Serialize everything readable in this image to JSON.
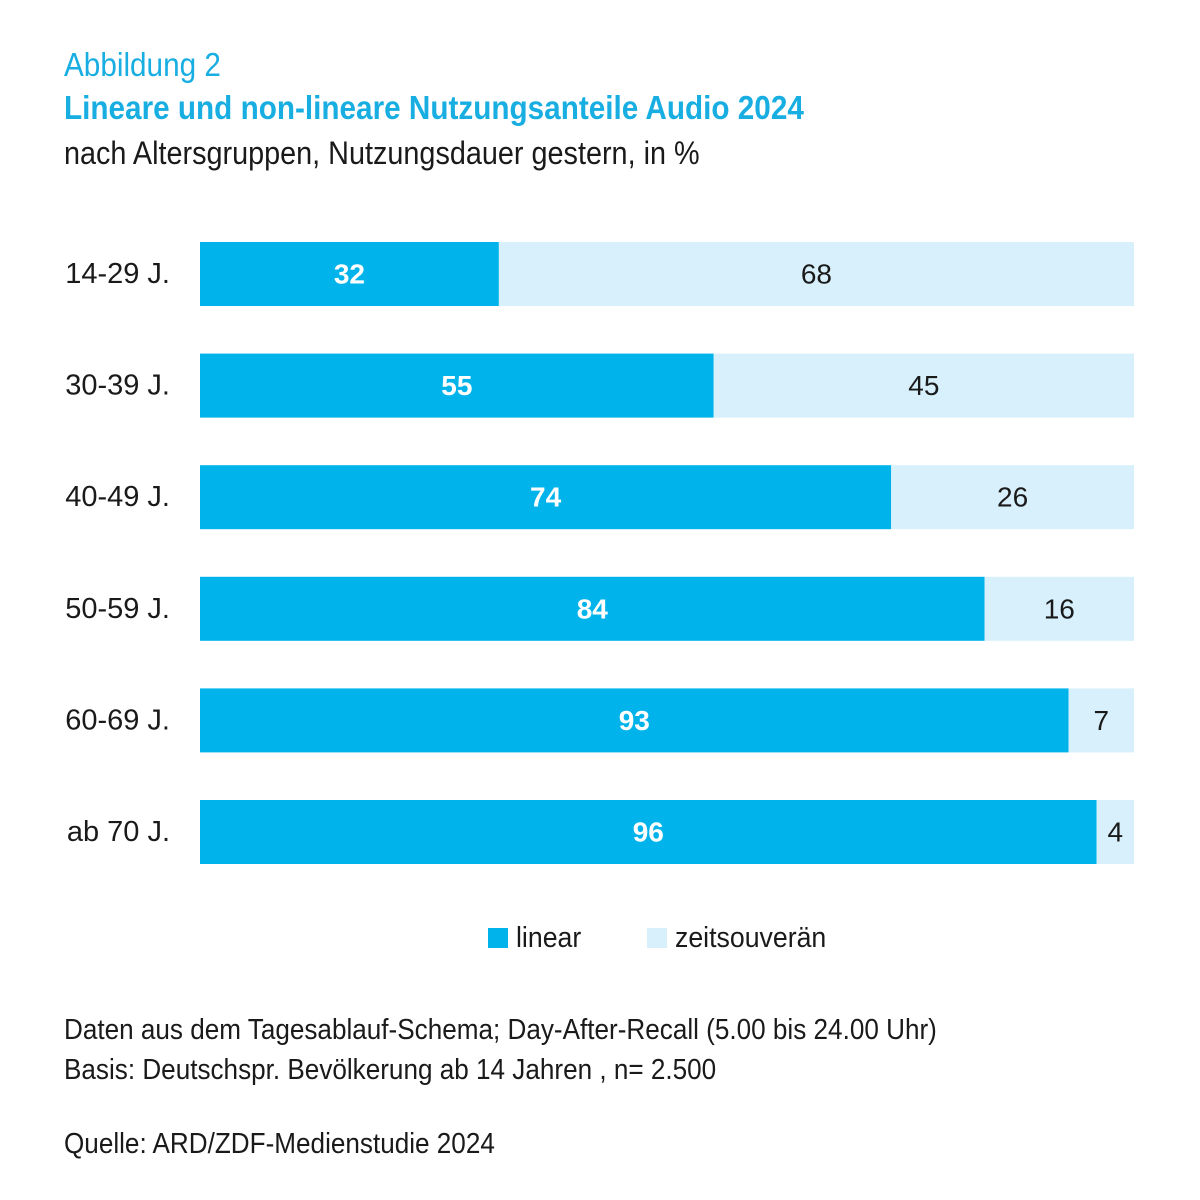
{
  "header": {
    "figure_label": "Abbildung 2",
    "title": "Lineare und non-lineare Nutzungsanteile Audio 2024",
    "subtitle": "nach Altersgruppen, Nutzungsdauer gestern, in %"
  },
  "colors": {
    "linear": "#00b4eb",
    "zeitsouveraen": "#d7f0fb",
    "label_on_dark": "#ffffff",
    "label_on_light": "#1a1a1a",
    "title": "#18aee2"
  },
  "chart_data": {
    "type": "bar",
    "orientation": "horizontal",
    "stacked": true,
    "categories": [
      "14-29 J.",
      "30-39 J.",
      "40-49 J.",
      "50-59 J.",
      "60-69 J.",
      "ab 70 J."
    ],
    "series": [
      {
        "name": "linear",
        "values": [
          32,
          55,
          74,
          84,
          93,
          96
        ]
      },
      {
        "name": "zeitsouverän",
        "values": [
          68,
          45,
          26,
          16,
          7,
          4
        ]
      }
    ],
    "xlim": [
      0,
      100
    ],
    "grid": false,
    "legend_position": "bottom"
  },
  "legend": {
    "linear_label": "linear",
    "zeitsouveraen_label": "zeitsouverän"
  },
  "notes": {
    "line1": "Daten aus dem Tagesablauf-Schema; Day-After-Recall (5.00 bis 24.00 Uhr)",
    "line2": "Basis: Deutschspr. Bevölkerung ab 14 Jahren , n= 2.500",
    "source": "Quelle: ARD/ZDF-Medienstudie 2024"
  }
}
